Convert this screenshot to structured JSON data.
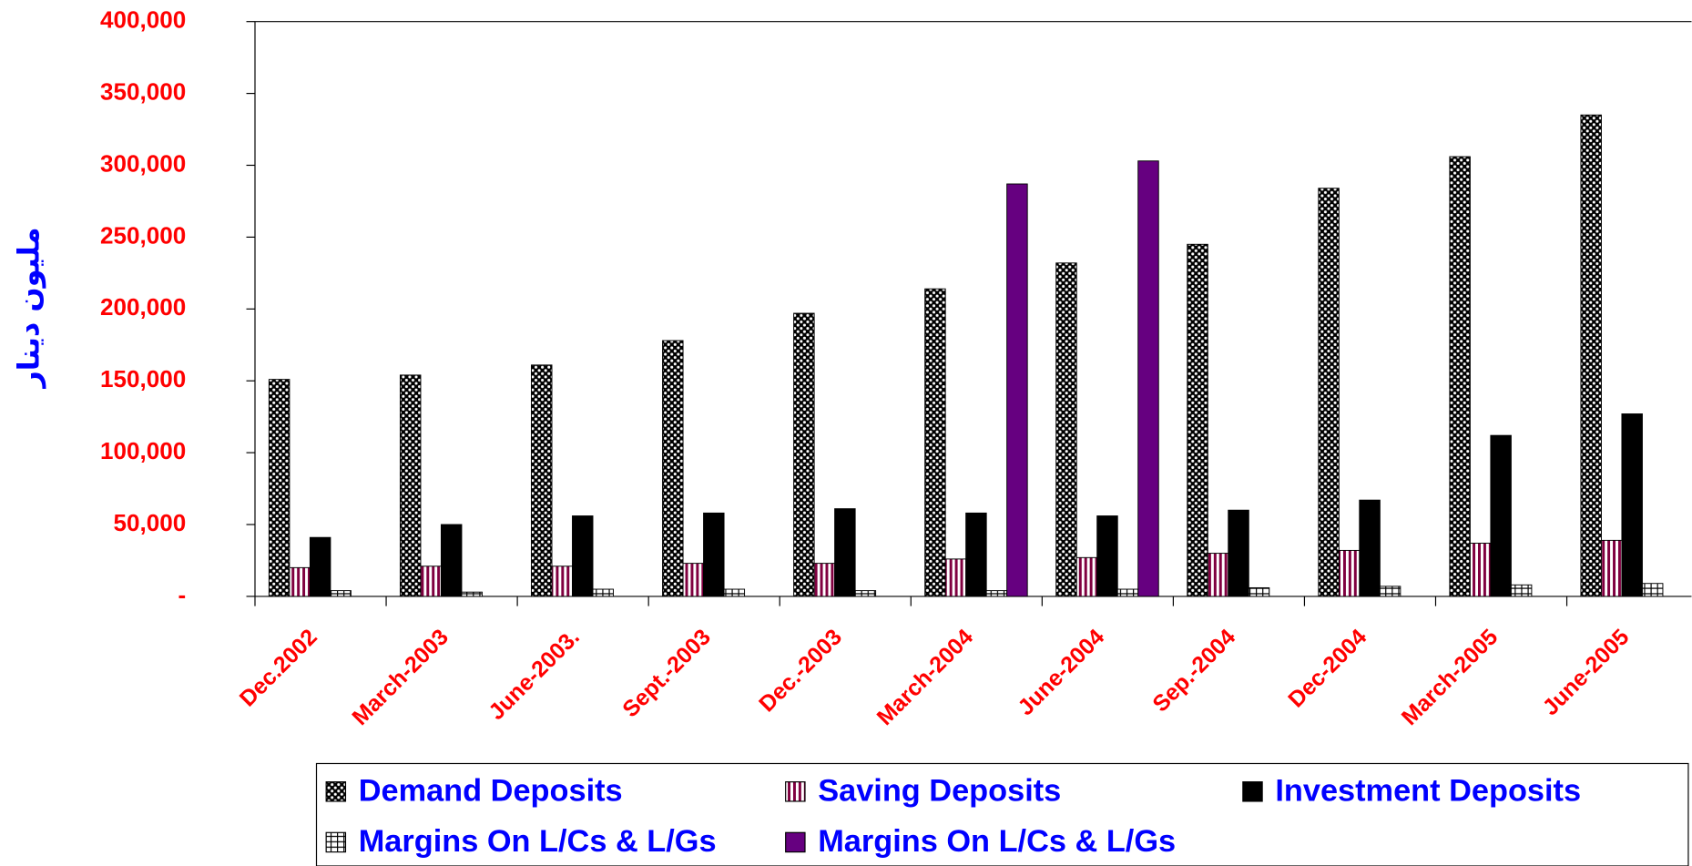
{
  "chart_data": {
    "type": "bar",
    "y_label": "مليون دينار",
    "categories": [
      "Dec.2002",
      "March-2003",
      "June-2003.",
      "Sept.-2003",
      "Dec.-2003",
      "March-2004",
      "June-2004",
      "Sep.-2004",
      "Dec-2004",
      "March-2005",
      "June-2005"
    ],
    "series": [
      {
        "name": "Demand Deposits",
        "color": "#000000",
        "pattern": "dots",
        "values": [
          151000,
          154000,
          161000,
          178000,
          197000,
          214000,
          232000,
          245000,
          284000,
          306000,
          335000
        ]
      },
      {
        "name": "Saving Deposits",
        "color": "#800040",
        "pattern": "stripes",
        "values": [
          20000,
          21000,
          21000,
          23000,
          23000,
          26000,
          27000,
          30000,
          32000,
          37000,
          39000
        ]
      },
      {
        "name": "Investment Deposits",
        "color": "#000000",
        "pattern": "solid",
        "values": [
          41000,
          50000,
          56000,
          58000,
          61000,
          58000,
          56000,
          60000,
          67000,
          112000,
          127000
        ]
      },
      {
        "name": "Margins On L/Cs & L/Gs",
        "color": "#000000",
        "pattern": "grid",
        "values": [
          4000,
          3000,
          5000,
          5000,
          4000,
          4000,
          5000,
          6000,
          7000,
          8000,
          9000
        ]
      },
      {
        "name": "Margins On L/Cs & L/Gs",
        "color": "#660080",
        "pattern": "solid",
        "values": [
          null,
          null,
          null,
          null,
          null,
          287000,
          303000,
          null,
          null,
          null,
          null
        ]
      }
    ],
    "ylim": [
      0,
      400000
    ],
    "yticks": [
      {
        "value": 0,
        "label": "-"
      },
      {
        "value": 50000,
        "label": "50,000"
      },
      {
        "value": 100000,
        "label": "100,000"
      },
      {
        "value": 150000,
        "label": "150,000"
      },
      {
        "value": 200000,
        "label": "200,000"
      },
      {
        "value": 250000,
        "label": "250,000"
      },
      {
        "value": 300000,
        "label": "300,000"
      },
      {
        "value": 350000,
        "label": "350,000"
      },
      {
        "value": 400000,
        "label": "400,000"
      }
    ]
  }
}
